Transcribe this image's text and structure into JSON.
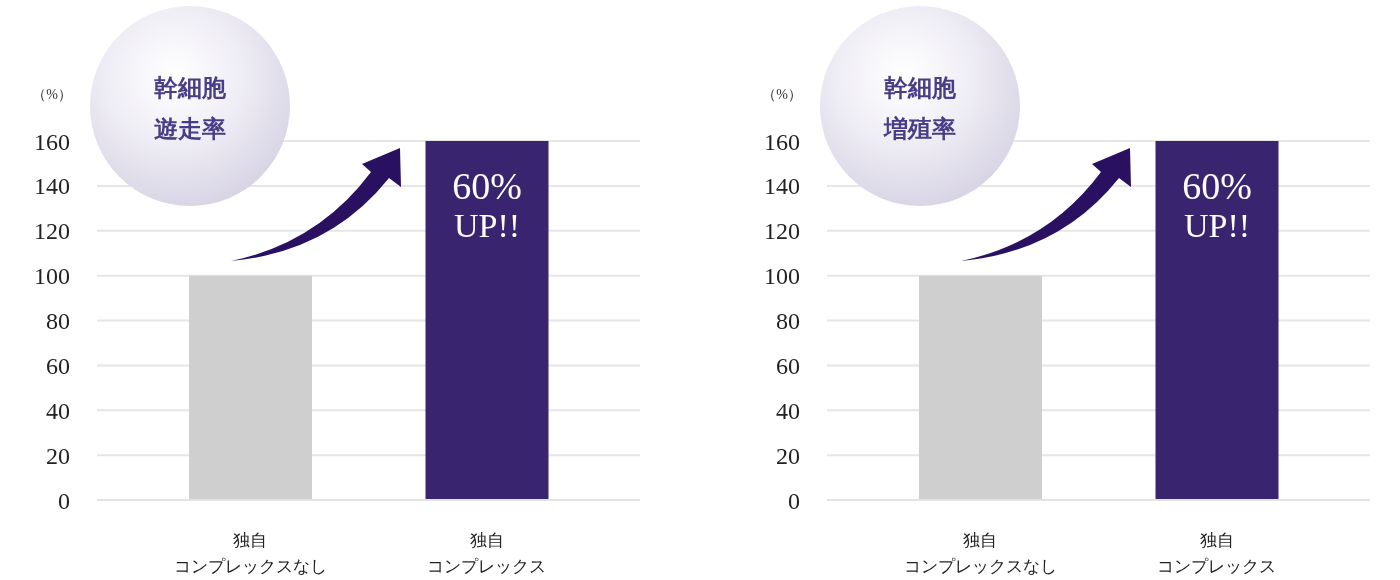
{
  "chart_data": [
    {
      "type": "bar",
      "title": "幹細胞遊走率",
      "ylabel": "（%）",
      "categories": [
        "独自コンプレックスなし",
        "独自コンプレックス"
      ],
      "values": [
        100,
        160
      ],
      "colors": [
        "#cfcfcf",
        "#38246f"
      ],
      "ylim": [
        0,
        160
      ],
      "yticks": [
        0,
        20,
        40,
        60,
        80,
        100,
        120,
        140,
        160
      ],
      "grid": "y",
      "annotations": [
        {
          "text": "60%\nUP!!",
          "x": "独自コンプレックス",
          "y": 160
        }
      ]
    },
    {
      "type": "bar",
      "title": "幹細胞増殖率",
      "ylabel": "（%）",
      "categories": [
        "独自コンプレックスなし",
        "独自コンプレックス"
      ],
      "values": [
        100,
        160
      ],
      "colors": [
        "#cfcfcf",
        "#38246f"
      ],
      "ylim": [
        0,
        160
      ],
      "yticks": [
        0,
        20,
        40,
        60,
        80,
        100,
        120,
        140,
        160
      ],
      "grid": "y",
      "annotations": [
        {
          "text": "60%\nUP!!",
          "x": "独自コンプレックス",
          "y": 160
        }
      ]
    }
  ]
}
